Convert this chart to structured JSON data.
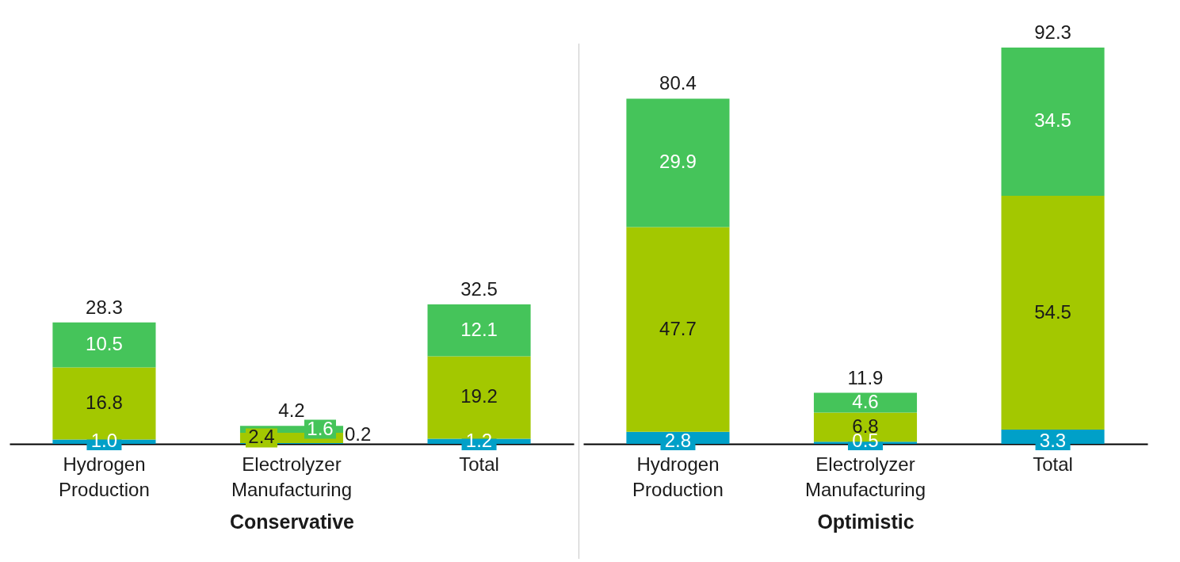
{
  "chart_data": [
    {
      "type": "bar",
      "stacked": true,
      "xlabel": "Conservative",
      "categories": [
        "Hydrogen Production",
        "Electrolyzer Manufacturing",
        "Total"
      ],
      "data_labels": true,
      "series": [
        {
          "color": "#00a0c8",
          "values": [
            1.0,
            0.2,
            1.2
          ],
          "value_labels": [
            "1.0",
            "0.2",
            "1.2"
          ]
        },
        {
          "color": "#a3c800",
          "values": [
            16.8,
            2.4,
            19.2
          ]
        },
        {
          "color": "#45c45a",
          "values": [
            10.5,
            1.6,
            12.1
          ]
        }
      ],
      "totals": [
        "28.3",
        "4.2",
        "32.5"
      ]
    },
    {
      "type": "bar",
      "stacked": true,
      "xlabel": "Optimistic",
      "categories": [
        "Hydrogen Production",
        "Electrolyzer Manufacturing",
        "Total"
      ],
      "data_labels": true,
      "series": [
        {
          "color": "#00a0c8",
          "values": [
            2.8,
            0.5,
            3.3
          ]
        },
        {
          "color": "#a3c800",
          "values": [
            47.7,
            6.8,
            54.5
          ]
        },
        {
          "color": "#45c45a",
          "values": [
            29.9,
            4.6,
            34.5
          ]
        }
      ],
      "totals": [
        "80.4",
        "11.9",
        "92.3"
      ]
    }
  ]
}
